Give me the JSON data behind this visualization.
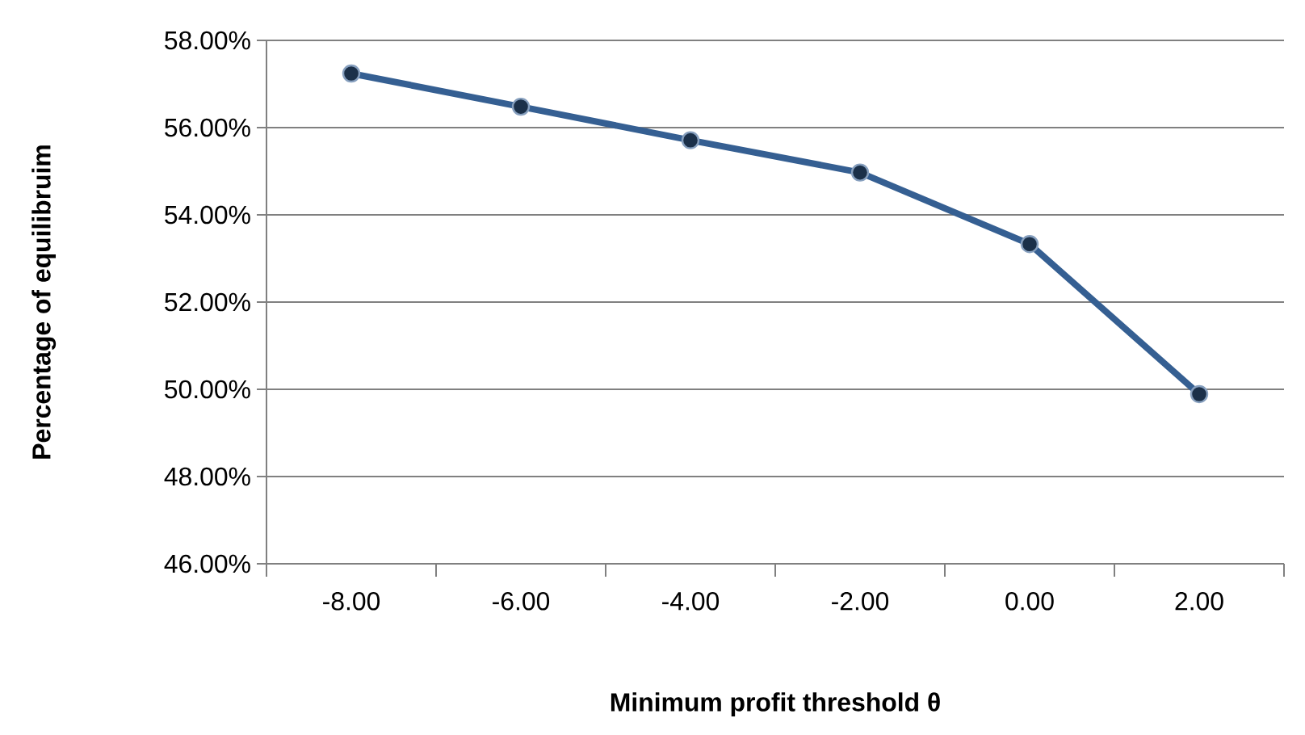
{
  "chart_data": {
    "type": "line",
    "xlabel": "Minimum profit threshold θ",
    "ylabel": "Percentage of equilibruim",
    "categories": [
      "-8.00",
      "-6.00",
      "-4.00",
      "-2.00",
      "0.00",
      "2.00"
    ],
    "series": [
      {
        "color": "#355f92",
        "values": [
          57.24,
          56.48,
          55.71,
          54.97,
          53.33,
          49.89
        ]
      }
    ],
    "ylim": [
      46,
      58
    ],
    "yticks": [
      {
        "value": 46,
        "label": "46.00%"
      },
      {
        "value": 48,
        "label": "48.00%"
      },
      {
        "value": 50,
        "label": "50.00%"
      },
      {
        "value": 52,
        "label": "52.00%"
      },
      {
        "value": 54,
        "label": "54.00%"
      },
      {
        "value": 56,
        "label": "56.00%"
      },
      {
        "value": 58,
        "label": "58.00%"
      }
    ],
    "grid": "y",
    "marker": "circle",
    "line_style": "solid"
  }
}
